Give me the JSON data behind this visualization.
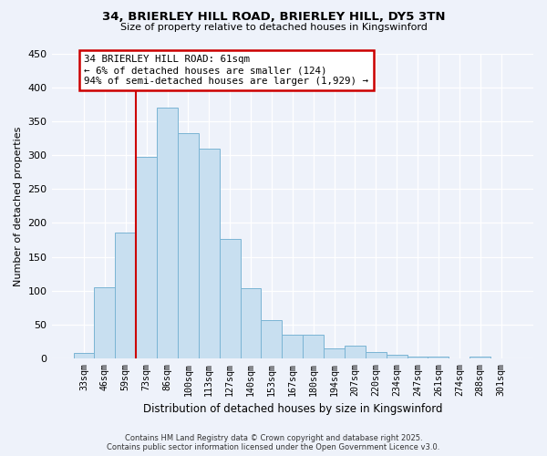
{
  "title1": "34, BRIERLEY HILL ROAD, BRIERLEY HILL, DY5 3TN",
  "title2": "Size of property relative to detached houses in Kingswinford",
  "xlabel": "Distribution of detached houses by size in Kingswinford",
  "ylabel": "Number of detached properties",
  "bar_labels": [
    "33sqm",
    "46sqm",
    "59sqm",
    "73sqm",
    "86sqm",
    "100sqm",
    "113sqm",
    "127sqm",
    "140sqm",
    "153sqm",
    "167sqm",
    "180sqm",
    "194sqm",
    "207sqm",
    "220sqm",
    "234sqm",
    "247sqm",
    "261sqm",
    "274sqm",
    "288sqm",
    "301sqm"
  ],
  "bar_heights": [
    8,
    105,
    186,
    297,
    371,
    333,
    310,
    176,
    104,
    57,
    35,
    35,
    15,
    18,
    9,
    5,
    3,
    2,
    0,
    2,
    0
  ],
  "bar_color": "#c8dff0",
  "bar_edge_color": "#7ab4d4",
  "ylim": [
    0,
    450
  ],
  "yticks": [
    0,
    50,
    100,
    150,
    200,
    250,
    300,
    350,
    400,
    450
  ],
  "line_color": "#cc0000",
  "annotation_line1": "34 BRIERLEY HILL ROAD: 61sqm",
  "annotation_line2": "← 6% of detached houses are smaller (124)",
  "annotation_line3": "94% of semi-detached houses are larger (1,929) →",
  "annotation_box_color": "#ffffff",
  "annotation_box_edge": "#cc0000",
  "footer1": "Contains HM Land Registry data © Crown copyright and database right 2025.",
  "footer2": "Contains public sector information licensed under the Open Government Licence v3.0.",
  "bg_color": "#eef2fa"
}
